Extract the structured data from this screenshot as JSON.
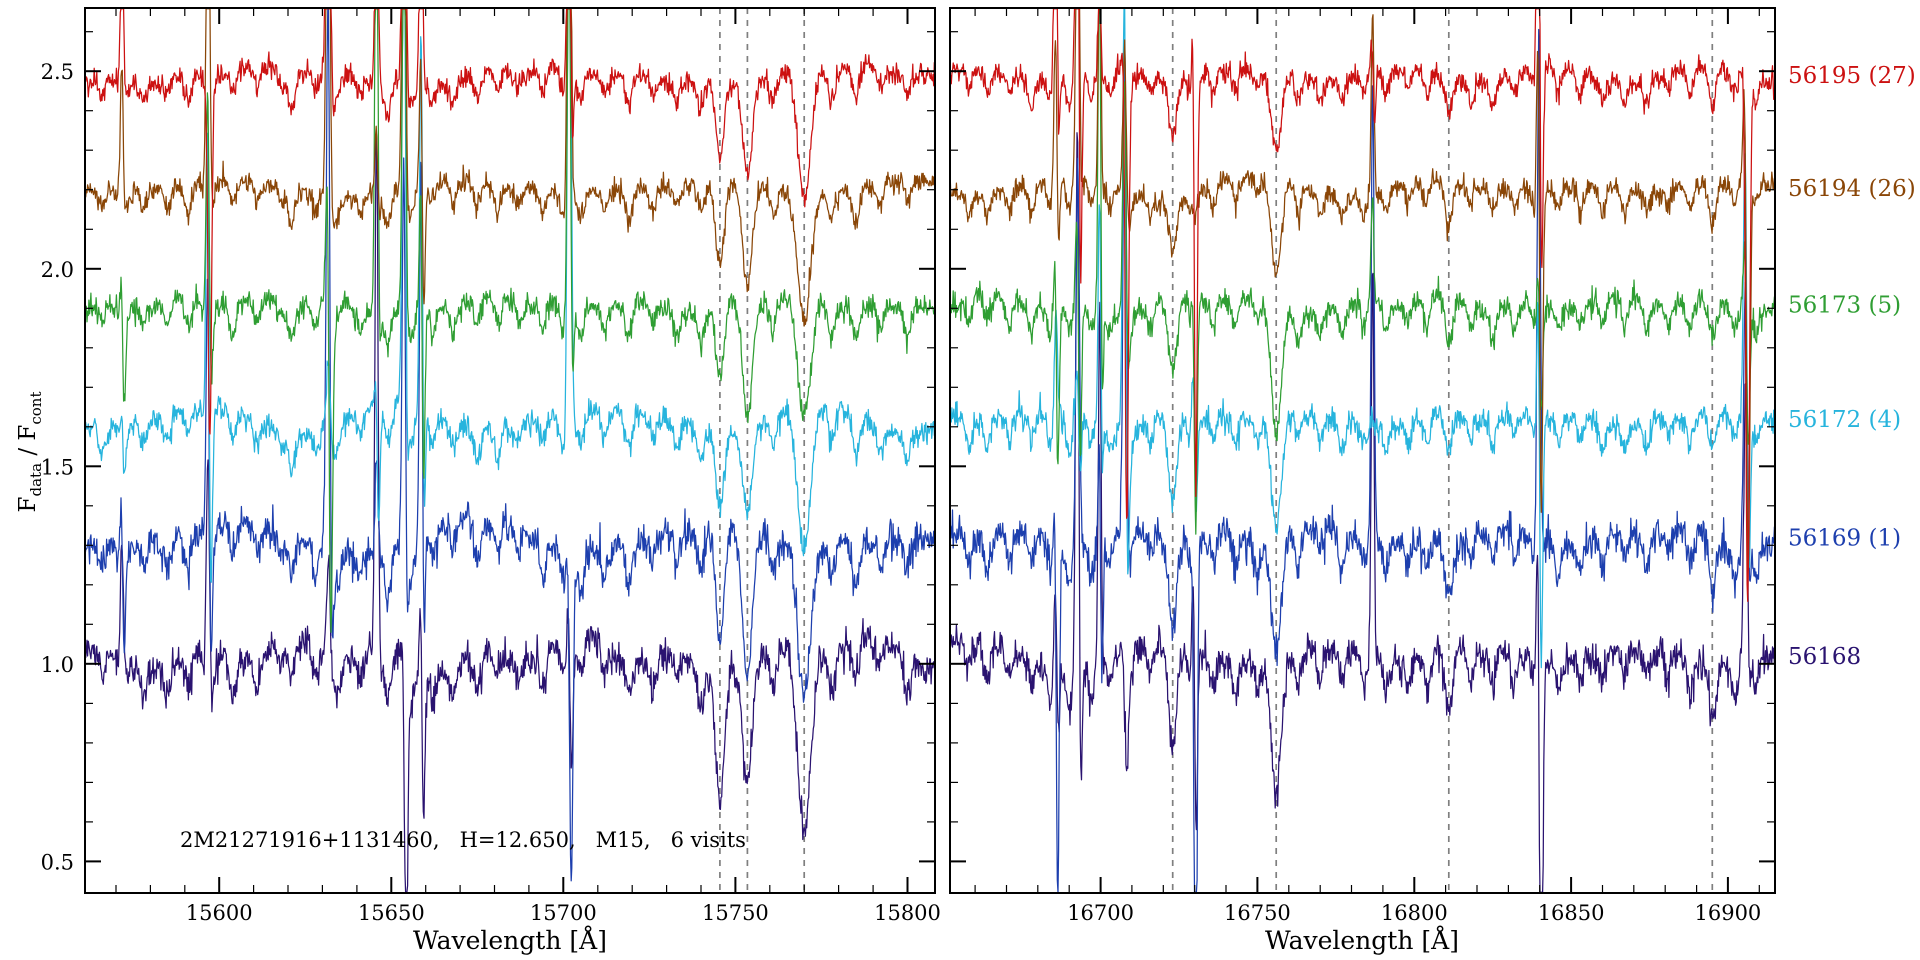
{
  "figure": {
    "annotation": "2M21271916+1131460,   H=12.650,   M15,   6 visits",
    "xlabel_left": "Wavelength [Å]",
    "xlabel_right": "Wavelength [Å]",
    "ylabel_parts": {
      "f1": "F",
      "s1": "data",
      "f2": " / F",
      "s2": "cont"
    },
    "colors": {
      "frame": "#000000",
      "dashed": "#7f7f7f",
      "background": "#ffffff"
    }
  },
  "chart_data": {
    "type": "line",
    "description": "Six continuum-normalized visit spectra of star 2M21271916+1131460 (cluster M15, H=12.650, 6 visits), vertically offset, shown in two wavelength windows with gray dashed lines marking spectral features",
    "title": "",
    "xlabel": "Wavelength [Å]",
    "ylabel": "F_data / F_cont",
    "ylim": [
      0.42,
      2.66
    ],
    "yticks": [
      0.5,
      1.0,
      1.5,
      2.0,
      2.5
    ],
    "ytick_labels": [
      "0.5",
      "1.0",
      "1.5",
      "2.0",
      "2.5"
    ],
    "y_minor_step": 0.1,
    "legend_position": "right",
    "series": [
      {
        "name": "56168",
        "label": "56168",
        "color": "#2a1370",
        "offset": 1.02,
        "noise": 0.022,
        "wiggle": 0.018,
        "line_scale": 1.15,
        "seed": 101
      },
      {
        "name": "56169",
        "label": "56169 (1)",
        "color": "#1d3fae",
        "offset": 1.32,
        "noise": 0.022,
        "wiggle": 0.018,
        "line_scale": 1.1,
        "seed": 202
      },
      {
        "name": "56172",
        "label": "56172 (4)",
        "color": "#27b4dd",
        "offset": 1.62,
        "noise": 0.016,
        "wiggle": 0.012,
        "line_scale": 1.0,
        "seed": 303
      },
      {
        "name": "56173",
        "label": "56173 (5)",
        "color": "#2f9e33",
        "offset": 1.91,
        "noise": 0.015,
        "wiggle": 0.011,
        "line_scale": 0.95,
        "seed": 404
      },
      {
        "name": "56194",
        "label": "56194 (26)",
        "color": "#8a4607",
        "offset": 2.205,
        "noise": 0.014,
        "wiggle": 0.01,
        "line_scale": 0.85,
        "seed": 505
      },
      {
        "name": "56195",
        "label": "56195 (27)",
        "color": "#cc1111",
        "offset": 2.49,
        "noise": 0.014,
        "wiggle": 0.01,
        "line_scale": 0.8,
        "seed": 606
      }
    ],
    "panels": [
      {
        "xlim": [
          15561,
          15808
        ],
        "xticks": [
          15600,
          15650,
          15700,
          15750,
          15800
        ],
        "x_minor_step": 10,
        "dashed_lines": [
          15745.5,
          15753.5,
          15770.0
        ],
        "lines": [
          [
            15566,
            0.05,
            0.9
          ],
          [
            15572,
            0.06,
            0.9
          ],
          [
            15578,
            0.05,
            0.8
          ],
          [
            15585,
            0.07,
            1.0
          ],
          [
            15591,
            0.08,
            1.0
          ],
          [
            15597,
            0.17,
            1.0
          ],
          [
            15604,
            0.07,
            0.9
          ],
          [
            15611,
            0.06,
            0.9
          ],
          [
            15618,
            0.05,
            0.9
          ],
          [
            15621,
            0.1,
            1.0
          ],
          [
            15628,
            0.06,
            0.9
          ],
          [
            15634,
            0.08,
            1.0
          ],
          [
            15641,
            0.05,
            0.9
          ],
          [
            15649,
            0.09,
            1.0
          ],
          [
            15656,
            0.09,
            1.0
          ],
          [
            15662,
            0.06,
            0.9
          ],
          [
            15668,
            0.07,
            0.9
          ],
          [
            15675,
            0.08,
            1.0
          ],
          [
            15681,
            0.07,
            0.9
          ],
          [
            15687,
            0.05,
            0.9
          ],
          [
            15694,
            0.07,
            0.9
          ],
          [
            15700,
            0.08,
            0.9
          ],
          [
            15705,
            0.09,
            1.0
          ],
          [
            15712,
            0.06,
            0.9
          ],
          [
            15719,
            0.09,
            1.0
          ],
          [
            15726,
            0.06,
            0.9
          ],
          [
            15733,
            0.06,
            0.9
          ],
          [
            15740,
            0.08,
            1.0
          ],
          [
            15745.5,
            0.24,
            1.2
          ],
          [
            15753.5,
            0.27,
            1.4
          ],
          [
            15761,
            0.08,
            1.0
          ],
          [
            15770,
            0.34,
            1.9
          ],
          [
            15778,
            0.08,
            1.0
          ],
          [
            15785,
            0.09,
            1.0
          ],
          [
            15792,
            0.06,
            0.9
          ],
          [
            15800,
            0.07,
            0.9
          ]
        ],
        "spikes": [
          [
            15572,
            0.6,
            0.2,
            0.45
          ],
          [
            15597,
            0.9,
            0.6,
            0.5
          ],
          [
            15632,
            1.7,
            1.2,
            0.55
          ],
          [
            15646,
            1.0,
            0.3,
            0.45
          ],
          [
            15654,
            1.4,
            0.8,
            0.5
          ],
          [
            15659,
            0.9,
            0.5,
            0.45
          ],
          [
            15702,
            1.2,
            0.8,
            0.5
          ]
        ]
      },
      {
        "xlim": [
          16652,
          16915
        ],
        "xticks": [
          16700,
          16750,
          16800,
          16850,
          16900
        ],
        "x_minor_step": 10,
        "dashed_lines": [
          16723.0,
          16756.0,
          16811.0,
          16895.0
        ],
        "lines": [
          [
            16658,
            0.06,
            0.9
          ],
          [
            16664,
            0.07,
            1.0
          ],
          [
            16671,
            0.06,
            0.9
          ],
          [
            16678,
            0.08,
            1.0
          ],
          [
            16684,
            0.07,
            0.9
          ],
          [
            16690,
            0.08,
            1.0
          ],
          [
            16697,
            0.07,
            0.9
          ],
          [
            16703,
            0.06,
            0.9
          ],
          [
            16709,
            0.09,
            1.0
          ],
          [
            16716,
            0.06,
            0.9
          ],
          [
            16723,
            0.19,
            1.3
          ],
          [
            16729,
            0.08,
            1.0
          ],
          [
            16736,
            0.06,
            0.9
          ],
          [
            16743,
            0.07,
            0.9
          ],
          [
            16750,
            0.06,
            0.9
          ],
          [
            16756,
            0.29,
            1.6
          ],
          [
            16763,
            0.07,
            0.9
          ],
          [
            16770,
            0.06,
            0.9
          ],
          [
            16777,
            0.07,
            1.0
          ],
          [
            16784,
            0.06,
            0.9
          ],
          [
            16791,
            0.07,
            0.9
          ],
          [
            16798,
            0.06,
            0.9
          ],
          [
            16804,
            0.07,
            0.9
          ],
          [
            16811,
            0.11,
            1.2
          ],
          [
            16818,
            0.06,
            0.9
          ],
          [
            16825,
            0.07,
            0.9
          ],
          [
            16832,
            0.06,
            0.9
          ],
          [
            16839,
            0.09,
            1.0
          ],
          [
            16846,
            0.07,
            0.9
          ],
          [
            16853,
            0.06,
            0.9
          ],
          [
            16860,
            0.07,
            0.9
          ],
          [
            16867,
            0.06,
            0.9
          ],
          [
            16874,
            0.07,
            1.0
          ],
          [
            16881,
            0.06,
            0.9
          ],
          [
            16888,
            0.08,
            1.0
          ],
          [
            16895,
            0.11,
            1.1
          ],
          [
            16902,
            0.07,
            0.9
          ],
          [
            16909,
            0.06,
            0.9
          ]
        ],
        "spikes": [
          [
            16686,
            1.4,
            0.8,
            0.5
          ],
          [
            16693,
            1.7,
            1.0,
            0.55
          ],
          [
            16700,
            0.8,
            0.4,
            0.45
          ],
          [
            16708,
            1.6,
            0.9,
            0.55
          ],
          [
            16730,
            0.5,
            1.0,
            0.5
          ],
          [
            16787,
            0.9,
            0.15,
            0.45
          ],
          [
            16840,
            1.0,
            1.5,
            0.55
          ],
          [
            16906,
            1.8,
            1.4,
            0.6
          ]
        ]
      }
    ]
  }
}
